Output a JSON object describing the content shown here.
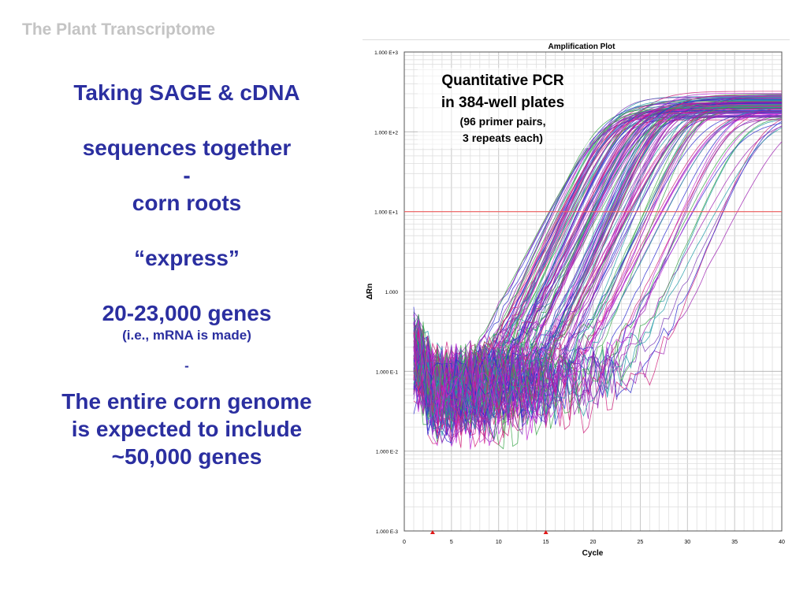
{
  "header": {
    "title": "The Plant Transcriptome"
  },
  "left_text": {
    "line1": "Taking SAGE & cDNA",
    "line2": "sequences together",
    "line3": "-",
    "line4": "corn roots",
    "line5": "“express”",
    "line6": "20-23,000 genes",
    "line7": "(i.e., mRNA is made)",
    "line8": "-",
    "line9": "The entire corn genome",
    "line10": "is expected to include",
    "line11": "~50,000 genes"
  },
  "annotation": {
    "line1": "Quantitative PCR",
    "line2": "in 384-well plates",
    "line3": "(96 primer pairs,",
    "line4": "3 repeats each)"
  },
  "chart_data": {
    "type": "line",
    "title": "Amplification Plot",
    "xlabel": "Cycle",
    "ylabel": "ΔRn",
    "xlim": [
      0,
      40
    ],
    "ylim": [
      0.001,
      1000
    ],
    "yscale": "log",
    "x_ticks": [
      0,
      5,
      10,
      15,
      20,
      25,
      30,
      35,
      40
    ],
    "y_ticks": [
      {
        "value": 1000,
        "label": "1.000 E+3"
      },
      {
        "value": 100,
        "label": "1.000 E+2"
      },
      {
        "value": 10,
        "label": "1.000 E+1"
      },
      {
        "value": 1,
        "label": "1.000"
      },
      {
        "value": 0.1,
        "label": "1.000 E-1"
      },
      {
        "value": 0.01,
        "label": "1.000 E-2"
      },
      {
        "value": 0.001,
        "label": "1.000 E-3"
      }
    ],
    "threshold": 10,
    "baseline_markers": [
      3,
      15
    ],
    "grid": true,
    "series_colors": [
      "#2b2bd0",
      "#9c1fb0",
      "#d01f7a",
      "#3aa64a",
      "#1f9aa6",
      "#7a3ab8",
      "#c22dd6"
    ],
    "representative_curves": [
      {
        "ct": 15.0,
        "plateau": 150
      },
      {
        "ct": 15.5,
        "plateau": 190
      },
      {
        "ct": 16.0,
        "plateau": 220
      },
      {
        "ct": 16.5,
        "plateau": 170
      },
      {
        "ct": 17.0,
        "plateau": 250
      },
      {
        "ct": 17.5,
        "plateau": 200
      },
      {
        "ct": 18.0,
        "plateau": 230
      },
      {
        "ct": 18.5,
        "plateau": 180
      },
      {
        "ct": 19.0,
        "plateau": 240
      },
      {
        "ct": 19.5,
        "plateau": 210
      },
      {
        "ct": 20.0,
        "plateau": 260
      },
      {
        "ct": 20.5,
        "plateau": 190
      },
      {
        "ct": 21.0,
        "plateau": 230
      },
      {
        "ct": 21.5,
        "plateau": 250
      },
      {
        "ct": 22.0,
        "plateau": 200
      },
      {
        "ct": 22.5,
        "plateau": 240
      },
      {
        "ct": 23.0,
        "plateau": 220
      },
      {
        "ct": 24.0,
        "plateau": 200
      },
      {
        "ct": 25.0,
        "plateau": 240
      },
      {
        "ct": 26.0,
        "plateau": 210
      },
      {
        "ct": 27.5,
        "plateau": 180
      },
      {
        "ct": 29.0,
        "plateau": 170
      },
      {
        "ct": 31.0,
        "plateau": 160
      },
      {
        "ct": 33.5,
        "plateau": 150
      }
    ]
  }
}
